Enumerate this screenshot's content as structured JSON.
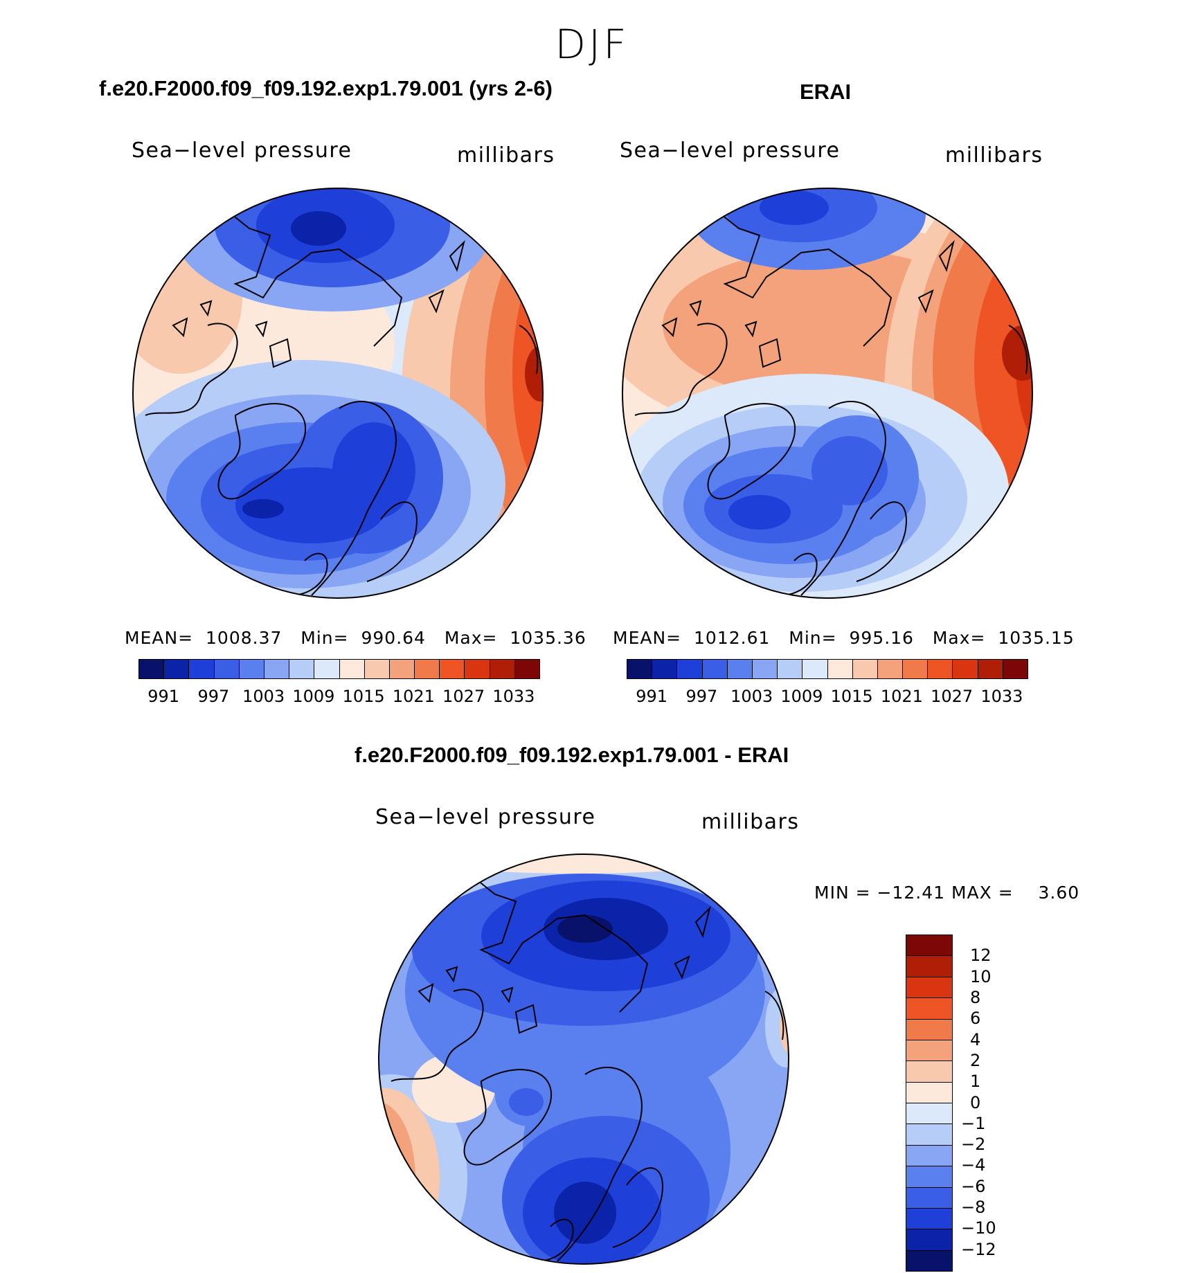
{
  "figure": {
    "season": "DJF"
  },
  "panels": {
    "model": {
      "title": "f.e20.F2000.f09_f09.192.exp1.79.001 (yrs 2-6)",
      "variable": "Sea−level pressure",
      "units": "millibars",
      "mean_label": "MEAN=",
      "mean_value": "1008.37",
      "min_label": "Min=",
      "min_value": "990.64",
      "max_label": "Max=",
      "max_value": "1035.36"
    },
    "obs": {
      "title": "ERAI",
      "variable": "Sea−level pressure",
      "units": "millibars",
      "mean_label": "MEAN=",
      "mean_value": "1012.61",
      "min_label": "Min=",
      "min_value": "995.16",
      "max_label": "Max=",
      "max_value": "1035.15"
    },
    "diff": {
      "title": "f.e20.F2000.f09_f09.192.exp1.79.001 - ERAI",
      "variable": "Sea−level pressure",
      "units": "millibars",
      "min_label": "MIN =",
      "min_value": "−12.41",
      "max_label": "MAX =",
      "max_value": "3.60"
    }
  },
  "colorbars": {
    "slp_colors": [
      "#08126b",
      "#0a23a8",
      "#1f3fd9",
      "#3a5fe6",
      "#5a7fee",
      "#88a6f3",
      "#b6cdf7",
      "#dce9fb",
      "#fce9dc",
      "#f8c9ad",
      "#f4a27c",
      "#f17a4a",
      "#ef5424",
      "#d93510",
      "#b01e08",
      "#7d0606"
    ],
    "slp_ticks": [
      "991",
      "997",
      "1003",
      "1009",
      "1015",
      "1021",
      "1027",
      "1033"
    ],
    "diff_colors_top_to_bottom": [
      "#7d0606",
      "#b01e08",
      "#d93510",
      "#ef5424",
      "#f17a4a",
      "#f4a27c",
      "#f8c9ad",
      "#fce9dc",
      "#dce9fb",
      "#b6cdf7",
      "#88a6f3",
      "#5a7fee",
      "#3a5fe6",
      "#1f3fd9",
      "#0a23a8",
      "#08126b"
    ],
    "diff_ticks": [
      "12",
      "10",
      "8",
      "6",
      "4",
      "2",
      "1",
      "0",
      "−1",
      "−2",
      "−4",
      "−6",
      "−8",
      "−10",
      "−12"
    ]
  }
}
